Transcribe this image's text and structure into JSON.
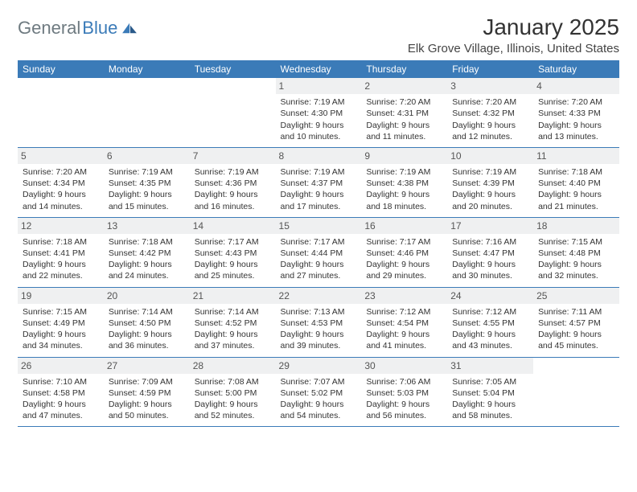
{
  "logo": {
    "general": "General",
    "blue": "Blue"
  },
  "header": {
    "month_title": "January 2025",
    "location": "Elk Grove Village, Illinois, United States"
  },
  "colors": {
    "accent": "#3b7bb8",
    "header_bg": "#3b7bb8",
    "daynum_bg": "#eff0f1",
    "text": "#333333",
    "logo_gray": "#6e7a80"
  },
  "day_headers": [
    "Sunday",
    "Monday",
    "Tuesday",
    "Wednesday",
    "Thursday",
    "Friday",
    "Saturday"
  ],
  "weeks": [
    [
      {
        "n": "",
        "sunrise": "",
        "sunset": "",
        "daylight1": "",
        "daylight2": ""
      },
      {
        "n": "",
        "sunrise": "",
        "sunset": "",
        "daylight1": "",
        "daylight2": ""
      },
      {
        "n": "",
        "sunrise": "",
        "sunset": "",
        "daylight1": "",
        "daylight2": ""
      },
      {
        "n": "1",
        "sunrise": "Sunrise: 7:19 AM",
        "sunset": "Sunset: 4:30 PM",
        "daylight1": "Daylight: 9 hours",
        "daylight2": "and 10 minutes."
      },
      {
        "n": "2",
        "sunrise": "Sunrise: 7:20 AM",
        "sunset": "Sunset: 4:31 PM",
        "daylight1": "Daylight: 9 hours",
        "daylight2": "and 11 minutes."
      },
      {
        "n": "3",
        "sunrise": "Sunrise: 7:20 AM",
        "sunset": "Sunset: 4:32 PM",
        "daylight1": "Daylight: 9 hours",
        "daylight2": "and 12 minutes."
      },
      {
        "n": "4",
        "sunrise": "Sunrise: 7:20 AM",
        "sunset": "Sunset: 4:33 PM",
        "daylight1": "Daylight: 9 hours",
        "daylight2": "and 13 minutes."
      }
    ],
    [
      {
        "n": "5",
        "sunrise": "Sunrise: 7:20 AM",
        "sunset": "Sunset: 4:34 PM",
        "daylight1": "Daylight: 9 hours",
        "daylight2": "and 14 minutes."
      },
      {
        "n": "6",
        "sunrise": "Sunrise: 7:19 AM",
        "sunset": "Sunset: 4:35 PM",
        "daylight1": "Daylight: 9 hours",
        "daylight2": "and 15 minutes."
      },
      {
        "n": "7",
        "sunrise": "Sunrise: 7:19 AM",
        "sunset": "Sunset: 4:36 PM",
        "daylight1": "Daylight: 9 hours",
        "daylight2": "and 16 minutes."
      },
      {
        "n": "8",
        "sunrise": "Sunrise: 7:19 AM",
        "sunset": "Sunset: 4:37 PM",
        "daylight1": "Daylight: 9 hours",
        "daylight2": "and 17 minutes."
      },
      {
        "n": "9",
        "sunrise": "Sunrise: 7:19 AM",
        "sunset": "Sunset: 4:38 PM",
        "daylight1": "Daylight: 9 hours",
        "daylight2": "and 18 minutes."
      },
      {
        "n": "10",
        "sunrise": "Sunrise: 7:19 AM",
        "sunset": "Sunset: 4:39 PM",
        "daylight1": "Daylight: 9 hours",
        "daylight2": "and 20 minutes."
      },
      {
        "n": "11",
        "sunrise": "Sunrise: 7:18 AM",
        "sunset": "Sunset: 4:40 PM",
        "daylight1": "Daylight: 9 hours",
        "daylight2": "and 21 minutes."
      }
    ],
    [
      {
        "n": "12",
        "sunrise": "Sunrise: 7:18 AM",
        "sunset": "Sunset: 4:41 PM",
        "daylight1": "Daylight: 9 hours",
        "daylight2": "and 22 minutes."
      },
      {
        "n": "13",
        "sunrise": "Sunrise: 7:18 AM",
        "sunset": "Sunset: 4:42 PM",
        "daylight1": "Daylight: 9 hours",
        "daylight2": "and 24 minutes."
      },
      {
        "n": "14",
        "sunrise": "Sunrise: 7:17 AM",
        "sunset": "Sunset: 4:43 PM",
        "daylight1": "Daylight: 9 hours",
        "daylight2": "and 25 minutes."
      },
      {
        "n": "15",
        "sunrise": "Sunrise: 7:17 AM",
        "sunset": "Sunset: 4:44 PM",
        "daylight1": "Daylight: 9 hours",
        "daylight2": "and 27 minutes."
      },
      {
        "n": "16",
        "sunrise": "Sunrise: 7:17 AM",
        "sunset": "Sunset: 4:46 PM",
        "daylight1": "Daylight: 9 hours",
        "daylight2": "and 29 minutes."
      },
      {
        "n": "17",
        "sunrise": "Sunrise: 7:16 AM",
        "sunset": "Sunset: 4:47 PM",
        "daylight1": "Daylight: 9 hours",
        "daylight2": "and 30 minutes."
      },
      {
        "n": "18",
        "sunrise": "Sunrise: 7:15 AM",
        "sunset": "Sunset: 4:48 PM",
        "daylight1": "Daylight: 9 hours",
        "daylight2": "and 32 minutes."
      }
    ],
    [
      {
        "n": "19",
        "sunrise": "Sunrise: 7:15 AM",
        "sunset": "Sunset: 4:49 PM",
        "daylight1": "Daylight: 9 hours",
        "daylight2": "and 34 minutes."
      },
      {
        "n": "20",
        "sunrise": "Sunrise: 7:14 AM",
        "sunset": "Sunset: 4:50 PM",
        "daylight1": "Daylight: 9 hours",
        "daylight2": "and 36 minutes."
      },
      {
        "n": "21",
        "sunrise": "Sunrise: 7:14 AM",
        "sunset": "Sunset: 4:52 PM",
        "daylight1": "Daylight: 9 hours",
        "daylight2": "and 37 minutes."
      },
      {
        "n": "22",
        "sunrise": "Sunrise: 7:13 AM",
        "sunset": "Sunset: 4:53 PM",
        "daylight1": "Daylight: 9 hours",
        "daylight2": "and 39 minutes."
      },
      {
        "n": "23",
        "sunrise": "Sunrise: 7:12 AM",
        "sunset": "Sunset: 4:54 PM",
        "daylight1": "Daylight: 9 hours",
        "daylight2": "and 41 minutes."
      },
      {
        "n": "24",
        "sunrise": "Sunrise: 7:12 AM",
        "sunset": "Sunset: 4:55 PM",
        "daylight1": "Daylight: 9 hours",
        "daylight2": "and 43 minutes."
      },
      {
        "n": "25",
        "sunrise": "Sunrise: 7:11 AM",
        "sunset": "Sunset: 4:57 PM",
        "daylight1": "Daylight: 9 hours",
        "daylight2": "and 45 minutes."
      }
    ],
    [
      {
        "n": "26",
        "sunrise": "Sunrise: 7:10 AM",
        "sunset": "Sunset: 4:58 PM",
        "daylight1": "Daylight: 9 hours",
        "daylight2": "and 47 minutes."
      },
      {
        "n": "27",
        "sunrise": "Sunrise: 7:09 AM",
        "sunset": "Sunset: 4:59 PM",
        "daylight1": "Daylight: 9 hours",
        "daylight2": "and 50 minutes."
      },
      {
        "n": "28",
        "sunrise": "Sunrise: 7:08 AM",
        "sunset": "Sunset: 5:00 PM",
        "daylight1": "Daylight: 9 hours",
        "daylight2": "and 52 minutes."
      },
      {
        "n": "29",
        "sunrise": "Sunrise: 7:07 AM",
        "sunset": "Sunset: 5:02 PM",
        "daylight1": "Daylight: 9 hours",
        "daylight2": "and 54 minutes."
      },
      {
        "n": "30",
        "sunrise": "Sunrise: 7:06 AM",
        "sunset": "Sunset: 5:03 PM",
        "daylight1": "Daylight: 9 hours",
        "daylight2": "and 56 minutes."
      },
      {
        "n": "31",
        "sunrise": "Sunrise: 7:05 AM",
        "sunset": "Sunset: 5:04 PM",
        "daylight1": "Daylight: 9 hours",
        "daylight2": "and 58 minutes."
      },
      {
        "n": "",
        "sunrise": "",
        "sunset": "",
        "daylight1": "",
        "daylight2": ""
      }
    ]
  ]
}
